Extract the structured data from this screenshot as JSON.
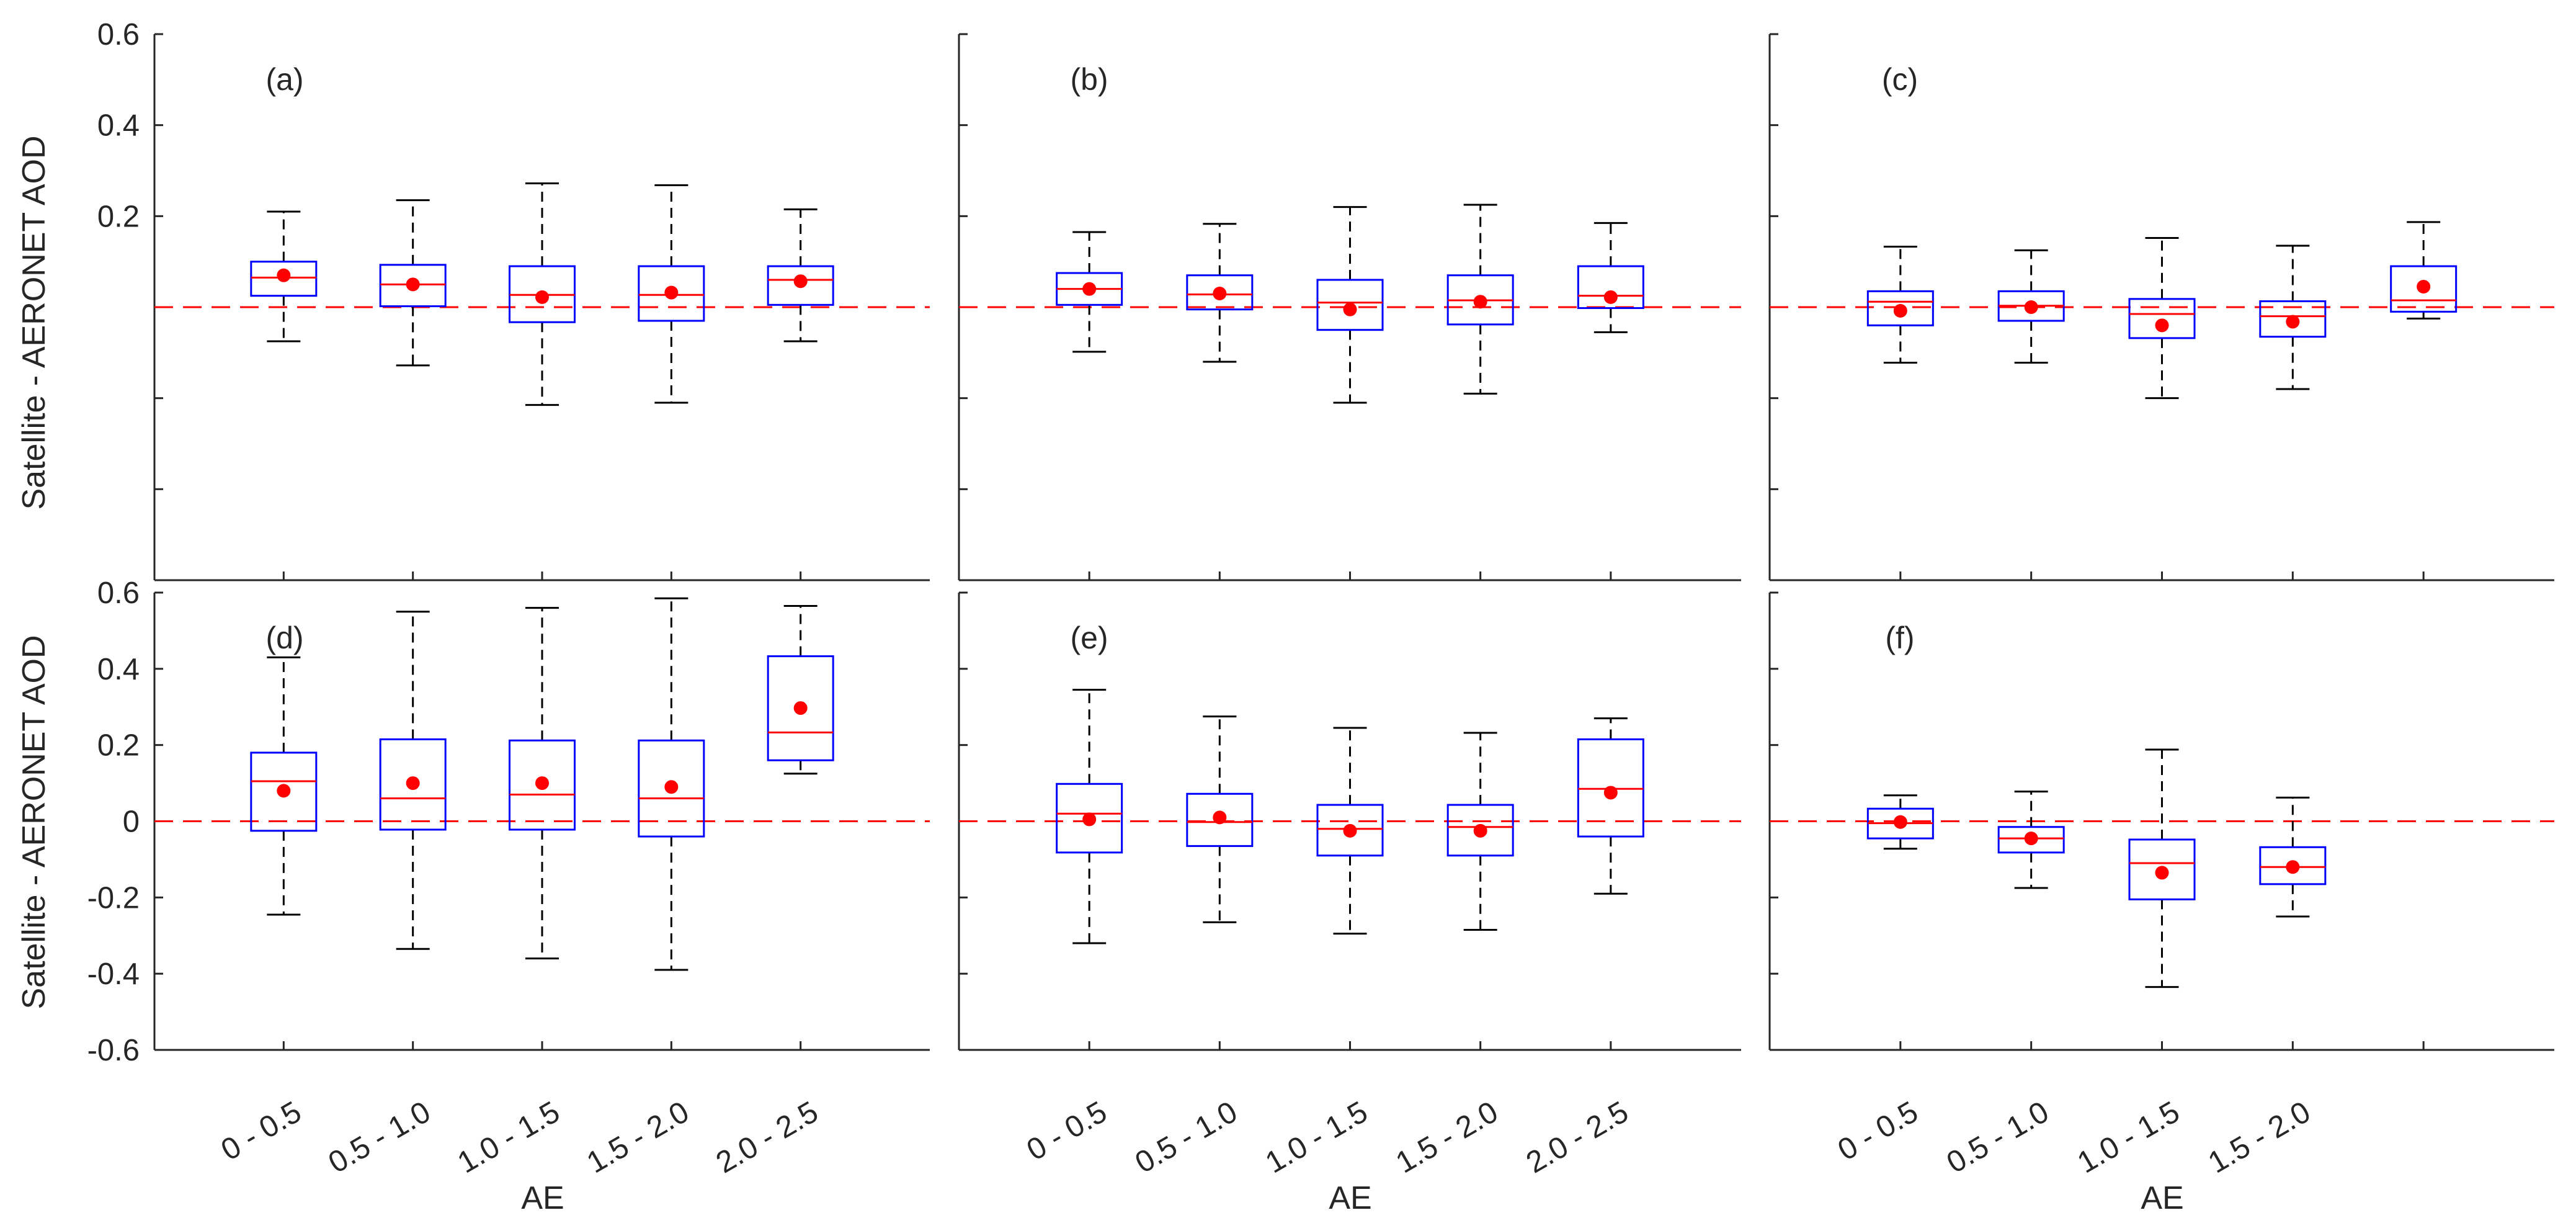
{
  "figure": {
    "ylabel": "Satellite - AERONET AOD",
    "xlabel": "AE"
  },
  "colors": {
    "box": "#0000ff",
    "median": "#ff0000",
    "mean": "#ff0000",
    "whisker": "#000000",
    "zero_line": "#ff0000",
    "axes": "#262626"
  },
  "chart_data": [
    {
      "type": "box",
      "label": "(a)",
      "categories": [
        "0 - 0.5",
        "0.5 - 1.0",
        "1.0 - 1.5",
        "1.5 - 2.0",
        "2.0 - 2.5"
      ],
      "ylim": [
        -0.6,
        0.6
      ],
      "yticks": [
        "",
        "0.2",
        "0.4",
        "0.6"
      ],
      "boxes": [
        {
          "whisker_low": -0.075,
          "q1": 0.025,
          "median": 0.065,
          "q3": 0.1,
          "whisker_high": 0.21,
          "mean": 0.07
        },
        {
          "whisker_low": -0.128,
          "q1": 0.002,
          "median": 0.05,
          "q3": 0.093,
          "whisker_high": 0.235,
          "mean": 0.05
        },
        {
          "whisker_low": -0.215,
          "q1": -0.033,
          "median": 0.027,
          "q3": 0.09,
          "whisker_high": 0.272,
          "mean": 0.022
        },
        {
          "whisker_low": -0.21,
          "q1": -0.03,
          "median": 0.027,
          "q3": 0.09,
          "whisker_high": 0.268,
          "mean": 0.032
        },
        {
          "whisker_low": -0.075,
          "q1": 0.005,
          "median": 0.06,
          "q3": 0.09,
          "whisker_high": 0.215,
          "mean": 0.057
        }
      ]
    },
    {
      "type": "box",
      "label": "(b)",
      "categories": [
        "0 - 0.5",
        "0.5 - 1.0",
        "1.0 - 1.5",
        "1.5 - 2.0",
        "2.0 - 2.5"
      ],
      "ylim": [
        -0.6,
        0.6
      ],
      "boxes": [
        {
          "whisker_low": -0.098,
          "q1": 0.005,
          "median": 0.04,
          "q3": 0.075,
          "whisker_high": 0.165,
          "mean": 0.04
        },
        {
          "whisker_low": -0.12,
          "q1": -0.005,
          "median": 0.028,
          "q3": 0.07,
          "whisker_high": 0.183,
          "mean": 0.03
        },
        {
          "whisker_low": -0.21,
          "q1": -0.05,
          "median": 0.01,
          "q3": 0.06,
          "whisker_high": 0.22,
          "mean": -0.005
        },
        {
          "whisker_low": -0.19,
          "q1": -0.038,
          "median": 0.015,
          "q3": 0.07,
          "whisker_high": 0.225,
          "mean": 0.012
        },
        {
          "whisker_low": -0.055,
          "q1": -0.002,
          "median": 0.025,
          "q3": 0.09,
          "whisker_high": 0.185,
          "mean": 0.022
        }
      ]
    },
    {
      "type": "box",
      "label": "(c)",
      "categories": [
        "0 - 0.5",
        "0.5 - 1.0",
        "1.0 - 1.5",
        "1.5 - 2.0",
        ""
      ],
      "ylim": [
        -0.6,
        0.6
      ],
      "boxes": [
        {
          "whisker_low": -0.122,
          "q1": -0.04,
          "median": 0.012,
          "q3": 0.035,
          "whisker_high": 0.133,
          "mean": -0.008
        },
        {
          "whisker_low": -0.122,
          "q1": -0.03,
          "median": 0.003,
          "q3": 0.035,
          "whisker_high": 0.125,
          "mean": 0.0
        },
        {
          "whisker_low": -0.2,
          "q1": -0.068,
          "median": -0.015,
          "q3": 0.018,
          "whisker_high": 0.152,
          "mean": -0.04
        },
        {
          "whisker_low": -0.18,
          "q1": -0.065,
          "median": -0.02,
          "q3": 0.013,
          "whisker_high": 0.135,
          "mean": -0.032
        },
        {
          "whisker_low": -0.025,
          "q1": -0.01,
          "median": 0.015,
          "q3": 0.09,
          "whisker_high": 0.187,
          "mean": 0.045
        }
      ]
    },
    {
      "type": "box",
      "label": "(d)",
      "categories": [
        "0 - 0.5",
        "0.5 - 1.0",
        "1.0 - 1.5",
        "1.5 - 2.0",
        "2.0 - 2.5"
      ],
      "ylim": [
        -0.6,
        0.6
      ],
      "yticks": [
        "-0.6",
        "-0.4",
        "-0.2",
        "0",
        "0.2",
        "0.4",
        "0.6"
      ],
      "boxes": [
        {
          "whisker_low": -0.245,
          "q1": -0.025,
          "median": 0.105,
          "q3": 0.18,
          "whisker_high": 0.43,
          "mean": 0.08
        },
        {
          "whisker_low": -0.335,
          "q1": -0.022,
          "median": 0.06,
          "q3": 0.215,
          "whisker_high": 0.55,
          "mean": 0.1
        },
        {
          "whisker_low": -0.36,
          "q1": -0.022,
          "median": 0.07,
          "q3": 0.212,
          "whisker_high": 0.56,
          "mean": 0.1
        },
        {
          "whisker_low": -0.39,
          "q1": -0.04,
          "median": 0.06,
          "q3": 0.212,
          "whisker_high": 0.585,
          "mean": 0.09
        },
        {
          "whisker_low": 0.125,
          "q1": 0.16,
          "median": 0.233,
          "q3": 0.433,
          "whisker_high": 0.565,
          "mean": 0.297
        }
      ]
    },
    {
      "type": "box",
      "label": "(e)",
      "categories": [
        "0 - 0.5",
        "0.5 - 1.0",
        "1.0 - 1.5",
        "1.5 - 2.0",
        "2.0 - 2.5"
      ],
      "ylim": [
        -0.6,
        0.6
      ],
      "boxes": [
        {
          "whisker_low": -0.32,
          "q1": -0.082,
          "median": 0.02,
          "q3": 0.098,
          "whisker_high": 0.345,
          "mean": 0.005
        },
        {
          "whisker_low": -0.265,
          "q1": -0.065,
          "median": -0.002,
          "q3": 0.072,
          "whisker_high": 0.275,
          "mean": 0.01
        },
        {
          "whisker_low": -0.295,
          "q1": -0.09,
          "median": -0.02,
          "q3": 0.043,
          "whisker_high": 0.245,
          "mean": -0.025
        },
        {
          "whisker_low": -0.285,
          "q1": -0.09,
          "median": -0.015,
          "q3": 0.043,
          "whisker_high": 0.232,
          "mean": -0.025
        },
        {
          "whisker_low": -0.19,
          "q1": -0.04,
          "median": 0.085,
          "q3": 0.215,
          "whisker_high": 0.27,
          "mean": 0.075
        }
      ]
    },
    {
      "type": "box",
      "label": "(f)",
      "categories": [
        "0 - 0.5",
        "0.5 - 1.0",
        "1.0 - 1.5",
        "1.5 - 2.0",
        ""
      ],
      "ylim": [
        -0.6,
        0.6
      ],
      "boxes": [
        {
          "whisker_low": -0.072,
          "q1": -0.045,
          "median": -0.005,
          "q3": 0.033,
          "whisker_high": 0.068,
          "mean": -0.002
        },
        {
          "whisker_low": -0.175,
          "q1": -0.082,
          "median": -0.045,
          "q3": -0.015,
          "whisker_high": 0.078,
          "mean": -0.045
        },
        {
          "whisker_low": -0.435,
          "q1": -0.205,
          "median": -0.11,
          "q3": -0.048,
          "whisker_high": 0.188,
          "mean": -0.135
        },
        {
          "whisker_low": -0.25,
          "q1": -0.165,
          "median": -0.12,
          "q3": -0.068,
          "whisker_high": 0.062,
          "mean": -0.12
        },
        null
      ]
    }
  ]
}
